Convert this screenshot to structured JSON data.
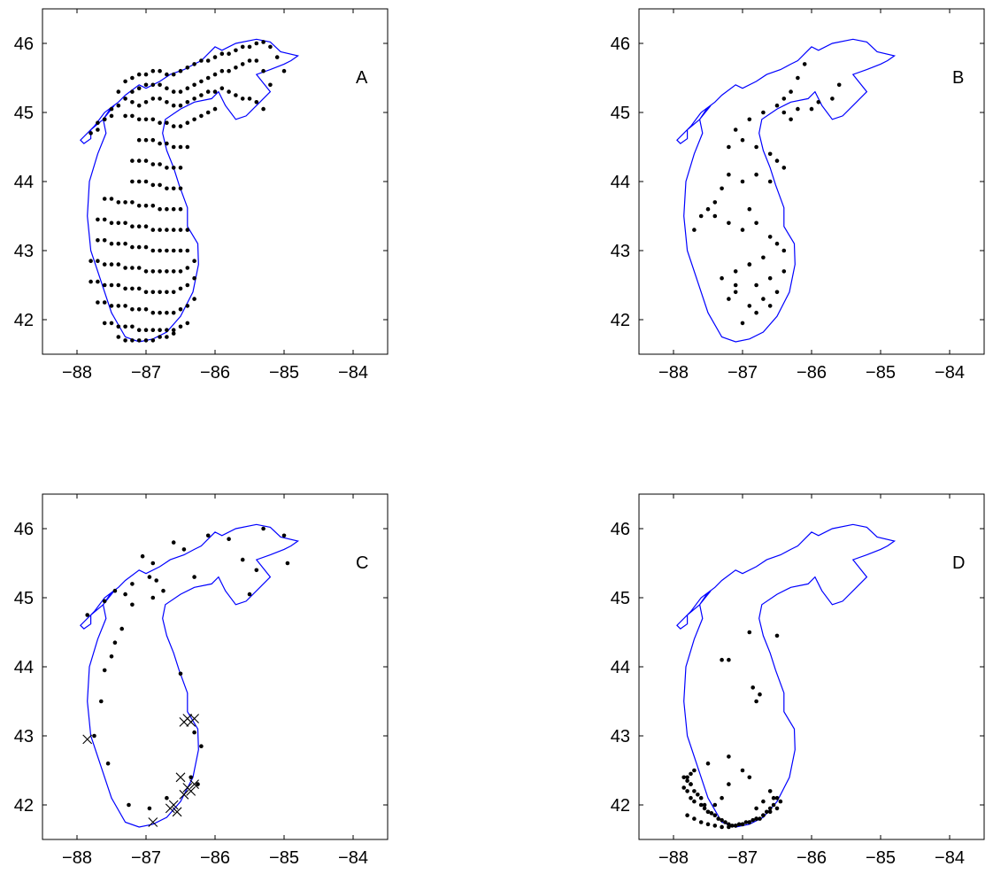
{
  "figure": {
    "coastline_color": "#0000ff",
    "marker_color": "#000000",
    "coastline_lon": [
      -87.9,
      -87.8,
      -87.8,
      -87.62,
      -87.52,
      -87.46,
      -87.62,
      -87.58,
      -87.7,
      -87.82,
      -87.85,
      -87.8,
      -87.65,
      -87.5,
      -87.3,
      -87.1,
      -86.9,
      -86.7,
      -86.5,
      -86.32,
      -86.24,
      -86.25,
      -86.4,
      -86.4,
      -86.52,
      -86.6,
      -86.7,
      -86.76,
      -86.72,
      -86.5,
      -86.3,
      -86.05,
      -85.95,
      -85.85,
      -85.7,
      -85.55,
      -85.35,
      -85.2,
      -85.4,
      -85.2,
      -85.0,
      -84.9,
      -84.8,
      -85.05,
      -85.2,
      -85.4,
      -85.7,
      -85.9,
      -86.0,
      -86.1,
      -86.2,
      -86.3,
      -86.45,
      -86.65,
      -86.8,
      -87.0,
      -87.1,
      -87.3,
      -87.4,
      -87.6,
      -87.75,
      -87.95,
      -87.9
    ],
    "coastline_lat": [
      44.55,
      44.62,
      44.75,
      44.9,
      45.05,
      45.1,
      44.9,
      44.7,
      44.4,
      44.0,
      43.5,
      43.0,
      42.55,
      42.1,
      41.75,
      41.68,
      41.72,
      41.82,
      42.05,
      42.4,
      42.8,
      43.1,
      43.35,
      43.62,
      43.95,
      44.2,
      44.45,
      44.7,
      44.9,
      45.05,
      45.15,
      45.2,
      45.3,
      45.1,
      44.9,
      44.95,
      45.15,
      45.3,
      45.55,
      45.62,
      45.7,
      45.75,
      45.82,
      45.88,
      46.02,
      46.06,
      46.0,
      45.9,
      45.95,
      45.85,
      45.75,
      45.7,
      45.62,
      45.55,
      45.45,
      45.35,
      45.4,
      45.25,
      45.15,
      45.0,
      44.8,
      44.6,
      44.55
    ]
  },
  "chart_data": [
    {
      "panel": "A",
      "type": "scatter",
      "marker": "dot",
      "xlim": [
        -88.5,
        -83.5
      ],
      "ylim": [
        41.5,
        46.5
      ],
      "xticks": [
        "−88",
        "−87",
        "−86",
        "−85",
        "−84"
      ],
      "xtick_values": [
        -88,
        -87,
        -86,
        -85,
        -84
      ],
      "yticks": [
        "46",
        "45",
        "44",
        "43",
        "42"
      ],
      "ytick_values": [
        46,
        45,
        44,
        43,
        42
      ],
      "label": "A",
      "grid": false,
      "x": [
        -87.8,
        -87.7,
        -87.6,
        -87.5,
        -87.4,
        -87.3,
        -87.2,
        -87.1,
        -87.0,
        -86.9,
        -86.8,
        -86.7,
        -86.6,
        -86.5,
        -86.4,
        -86.3,
        -86.2,
        -86.1,
        -86.0,
        -85.9,
        -85.8,
        -85.7,
        -85.6,
        -85.5,
        -85.4,
        -85.3,
        -85.2,
        -85.1,
        -85.0,
        -87.7,
        -87.6,
        -87.5,
        -87.4,
        -87.3,
        -87.2,
        -87.1,
        -87.0,
        -86.9,
        -86.8,
        -86.7,
        -86.6,
        -86.5,
        -86.4,
        -86.3,
        -86.2,
        -86.1,
        -86.0,
        -85.9,
        -85.8,
        -85.7,
        -85.6,
        -85.5,
        -85.4,
        -85.3,
        -85.2,
        -87.2,
        -87.1,
        -87.0,
        -86.9,
        -86.8,
        -86.7,
        -86.6,
        -86.5,
        -86.4,
        -86.3,
        -86.2,
        -86.1,
        -86.0,
        -85.9,
        -85.8,
        -85.7,
        -85.6,
        -85.5,
        -85.4,
        -85.3,
        -87.3,
        -87.2,
        -87.1,
        -87.0,
        -86.9,
        -86.8,
        -86.7,
        -86.6,
        -86.5,
        -86.4,
        -86.3,
        -86.2,
        -86.1,
        -86.0,
        -87.1,
        -87.0,
        -86.9,
        -86.8,
        -86.7,
        -86.6,
        -86.5,
        -86.4,
        -87.2,
        -87.1,
        -87.0,
        -86.9,
        -86.8,
        -86.7,
        -86.6,
        -86.5,
        -87.2,
        -87.1,
        -87.0,
        -86.9,
        -86.8,
        -86.7,
        -86.6,
        -86.5,
        -87.6,
        -87.5,
        -87.4,
        -87.3,
        -87.2,
        -87.1,
        -87.0,
        -86.9,
        -86.8,
        -86.7,
        -86.6,
        -86.5,
        -87.7,
        -87.6,
        -87.5,
        -87.4,
        -87.3,
        -87.2,
        -87.1,
        -87.0,
        -86.9,
        -86.8,
        -86.7,
        -86.6,
        -86.5,
        -86.4,
        -87.7,
        -87.6,
        -87.5,
        -87.4,
        -87.3,
        -87.2,
        -87.1,
        -87.0,
        -86.9,
        -86.8,
        -86.7,
        -86.6,
        -86.5,
        -86.4,
        -87.8,
        -87.7,
        -87.6,
        -87.5,
        -87.4,
        -87.3,
        -87.2,
        -87.1,
        -87.0,
        -86.9,
        -86.8,
        -86.7,
        -86.6,
        -86.5,
        -86.4,
        -86.3,
        -87.8,
        -87.7,
        -87.6,
        -87.5,
        -87.4,
        -87.3,
        -87.2,
        -87.1,
        -87.0,
        -86.9,
        -86.8,
        -86.7,
        -86.6,
        -86.5,
        -86.4,
        -86.3,
        -87.7,
        -87.6,
        -87.5,
        -87.4,
        -87.3,
        -87.2,
        -87.1,
        -87.0,
        -86.9,
        -86.8,
        -86.7,
        -86.6,
        -86.5,
        -86.4,
        -86.3,
        -87.6,
        -87.5,
        -87.4,
        -87.3,
        -87.2,
        -87.1,
        -87.0,
        -86.9,
        -86.8,
        -86.7,
        -86.6,
        -86.5,
        -86.4,
        -87.4,
        -87.3,
        -87.2,
        -87.1,
        -87.0,
        -86.9,
        -86.8,
        -86.7,
        -86.6
      ],
      "y": [
        44.7,
        44.75,
        44.9,
        45.05,
        45.3,
        45.45,
        45.5,
        45.55,
        45.55,
        45.6,
        45.6,
        45.55,
        45.55,
        45.6,
        45.65,
        45.7,
        45.75,
        45.75,
        45.8,
        45.85,
        45.85,
        45.9,
        45.95,
        45.95,
        46.0,
        46.02,
        45.95,
        45.8,
        45.6,
        44.85,
        44.9,
        44.95,
        45.1,
        45.2,
        45.3,
        45.35,
        45.4,
        45.4,
        45.4,
        45.35,
        45.3,
        45.3,
        45.35,
        45.4,
        45.45,
        45.5,
        45.55,
        45.6,
        45.6,
        45.65,
        45.7,
        45.75,
        45.75,
        45.6,
        45.4,
        45.15,
        45.1,
        45.15,
        45.2,
        45.2,
        45.15,
        45.1,
        45.1,
        45.15,
        45.2,
        45.25,
        45.3,
        45.3,
        45.35,
        45.3,
        45.25,
        45.2,
        45.2,
        45.15,
        45.05,
        44.95,
        44.95,
        44.9,
        44.9,
        44.9,
        44.85,
        44.85,
        44.8,
        44.8,
        44.85,
        44.9,
        44.95,
        45.0,
        45.05,
        44.6,
        44.6,
        44.6,
        44.55,
        44.55,
        44.5,
        44.5,
        44.5,
        44.3,
        44.3,
        44.3,
        44.25,
        44.25,
        44.2,
        44.2,
        44.2,
        44.0,
        44.0,
        44.0,
        43.95,
        43.95,
        43.9,
        43.9,
        43.9,
        43.75,
        43.75,
        43.7,
        43.7,
        43.7,
        43.65,
        43.65,
        43.65,
        43.6,
        43.6,
        43.6,
        43.6,
        43.45,
        43.45,
        43.4,
        43.4,
        43.4,
        43.35,
        43.35,
        43.35,
        43.3,
        43.3,
        43.3,
        43.3,
        43.3,
        43.3,
        43.15,
        43.15,
        43.1,
        43.1,
        43.1,
        43.05,
        43.05,
        43.05,
        43.0,
        43.0,
        43.0,
        43.0,
        43.0,
        43.0,
        42.85,
        42.85,
        42.8,
        42.8,
        42.8,
        42.75,
        42.75,
        42.75,
        42.7,
        42.7,
        42.7,
        42.7,
        42.7,
        42.7,
        42.75,
        42.85,
        42.55,
        42.55,
        42.5,
        42.5,
        42.5,
        42.45,
        42.45,
        42.45,
        42.4,
        42.4,
        42.4,
        42.4,
        42.4,
        42.45,
        42.5,
        42.6,
        42.25,
        42.25,
        42.2,
        42.2,
        42.2,
        42.15,
        42.15,
        42.15,
        42.1,
        42.1,
        42.1,
        42.1,
        42.15,
        42.2,
        42.3,
        41.95,
        41.95,
        41.9,
        41.9,
        41.9,
        41.85,
        41.85,
        41.85,
        41.85,
        41.85,
        41.85,
        41.9,
        41.95,
        41.75,
        41.7,
        41.7,
        41.7,
        41.7,
        41.7,
        41.75,
        41.75,
        41.8
      ]
    },
    {
      "panel": "B",
      "type": "scatter",
      "marker": "dot",
      "xlim": [
        -88.5,
        -83.5
      ],
      "ylim": [
        41.5,
        46.5
      ],
      "xticks": [
        "−88",
        "−87",
        "−86",
        "−85",
        "−84"
      ],
      "xtick_values": [
        -88,
        -87,
        -86,
        -85,
        -84
      ],
      "yticks": [
        "46",
        "45",
        "44",
        "43",
        "42"
      ],
      "ytick_values": [
        46,
        45,
        44,
        43,
        42
      ],
      "label": "B",
      "grid": false,
      "x": [
        -86.1,
        -86.2,
        -86.3,
        -86.4,
        -86.5,
        -86.4,
        -86.3,
        -85.6,
        -85.7,
        -85.9,
        -86.0,
        -86.2,
        -86.7,
        -86.9,
        -87.1,
        -87.2,
        -87.0,
        -86.8,
        -86.6,
        -86.5,
        -86.4,
        -86.6,
        -86.8,
        -87.0,
        -87.2,
        -87.3,
        -87.4,
        -87.5,
        -87.6,
        -87.7,
        -87.4,
        -87.2,
        -87.0,
        -86.9,
        -86.8,
        -86.6,
        -86.5,
        -86.4,
        -86.7,
        -86.9,
        -87.1,
        -87.3,
        -87.1,
        -86.8,
        -86.6,
        -86.4,
        -86.5,
        -86.7,
        -86.9,
        -87.1,
        -87.2,
        -86.8,
        -86.6,
        -87.0,
        -86.9
      ],
      "y": [
        45.7,
        45.5,
        45.3,
        45.2,
        45.1,
        45.0,
        44.9,
        45.4,
        45.2,
        45.15,
        45.05,
        45.05,
        45.0,
        44.9,
        44.75,
        44.5,
        44.6,
        44.5,
        44.4,
        44.3,
        44.2,
        44.0,
        44.1,
        44.0,
        44.1,
        43.9,
        43.7,
        43.6,
        43.5,
        43.3,
        43.5,
        43.4,
        43.3,
        43.6,
        43.4,
        43.2,
        43.1,
        43.0,
        42.9,
        42.8,
        42.7,
        42.6,
        42.5,
        42.5,
        42.6,
        42.7,
        42.4,
        42.3,
        42.2,
        42.4,
        42.3,
        42.1,
        42.2,
        41.95,
        42.8
      ]
    },
    {
      "panel": "C",
      "type": "scatter",
      "marker": "dot-and-x",
      "xlim": [
        -88.5,
        -83.5
      ],
      "ylim": [
        41.5,
        46.5
      ],
      "xticks": [
        "−88",
        "−87",
        "−86",
        "−85",
        "−84"
      ],
      "xtick_values": [
        -88,
        -87,
        -86,
        -85,
        -84
      ],
      "yticks": [
        "46",
        "45",
        "44",
        "43",
        "42"
      ],
      "ytick_values": [
        46,
        45,
        44,
        43,
        42
      ],
      "label": "C",
      "grid": false,
      "dot_x": [
        -87.85,
        -87.6,
        -87.45,
        -87.3,
        -87.2,
        -87.05,
        -86.95,
        -86.85,
        -86.75,
        -86.45,
        -86.1,
        -85.8,
        -85.6,
        -85.3,
        -85.0,
        -84.95,
        -85.4,
        -85.5,
        -86.3,
        -86.6,
        -86.9,
        -86.9,
        -87.2,
        -87.35,
        -87.45,
        -87.5,
        -87.6,
        -87.65,
        -87.75,
        -87.55,
        -87.25,
        -86.95,
        -86.7,
        -86.35,
        -86.2,
        -86.3,
        -86.5,
        -86.25
      ],
      "dot_y": [
        44.75,
        44.95,
        45.1,
        45.05,
        45.2,
        45.6,
        45.3,
        45.25,
        45.1,
        45.7,
        45.9,
        45.85,
        45.55,
        46.0,
        45.9,
        45.5,
        45.4,
        45.05,
        45.3,
        45.8,
        45.5,
        45.0,
        44.9,
        44.55,
        44.35,
        44.15,
        43.95,
        43.5,
        43.0,
        42.6,
        42.0,
        41.95,
        42.1,
        42.4,
        42.85,
        43.05,
        43.9,
        42.3
      ],
      "x_marker_x": [
        -87.85,
        -86.4,
        -86.35,
        -86.3,
        -86.45,
        -86.5,
        -86.3,
        -86.4,
        -86.35,
        -86.45,
        -86.6,
        -86.65,
        -86.55,
        -86.9
      ],
      "x_marker_y": [
        42.95,
        43.25,
        43.2,
        43.25,
        43.2,
        42.4,
        42.3,
        42.25,
        42.2,
        42.15,
        42.0,
        41.95,
        41.9,
        41.75
      ]
    },
    {
      "panel": "D",
      "type": "scatter",
      "marker": "dot",
      "xlim": [
        -88.5,
        -83.5
      ],
      "ylim": [
        41.5,
        46.5
      ],
      "xticks": [
        "−88",
        "−87",
        "−86",
        "−85",
        "−84"
      ],
      "xtick_values": [
        -88,
        -87,
        -86,
        -85,
        -84
      ],
      "yticks": [
        "46",
        "45",
        "44",
        "43",
        "42"
      ],
      "ytick_values": [
        46,
        45,
        44,
        43,
        42
      ],
      "label": "D",
      "grid": false,
      "x": [
        -86.9,
        -86.5,
        -87.3,
        -87.2,
        -86.85,
        -86.75,
        -86.8,
        -87.2,
        -87.0,
        -87.5,
        -87.7,
        -87.75,
        -87.8,
        -87.75,
        -87.85,
        -87.8,
        -87.75,
        -87.7,
        -87.6,
        -87.55,
        -87.5,
        -87.8,
        -87.7,
        -87.6,
        -87.5,
        -87.4,
        -87.3,
        -87.2,
        -87.1,
        -87.0,
        -86.9,
        -86.8,
        -86.7,
        -86.6,
        -86.5,
        -86.45,
        -86.5,
        -86.55,
        -86.6,
        -86.65,
        -86.7,
        -86.75,
        -86.8,
        -86.85,
        -86.9,
        -86.95,
        -87.0,
        -87.05,
        -87.1,
        -87.15,
        -87.2,
        -87.25,
        -87.3,
        -87.35,
        -87.4,
        -87.45,
        -87.5,
        -87.55,
        -87.6,
        -87.65,
        -87.7,
        -87.75,
        -87.8,
        -87.85,
        -87.4,
        -87.3,
        -87.2,
        -86.9,
        -86.6,
        -86.55,
        -86.7,
        -86.8
      ],
      "y": [
        44.5,
        44.45,
        44.1,
        44.1,
        43.7,
        43.6,
        43.5,
        42.7,
        42.5,
        42.6,
        42.5,
        42.45,
        42.4,
        42.3,
        42.25,
        42.2,
        42.1,
        42.05,
        42.0,
        41.95,
        41.9,
        41.85,
        41.8,
        41.75,
        41.72,
        41.7,
        41.68,
        41.68,
        41.7,
        41.72,
        41.75,
        41.8,
        41.85,
        41.9,
        41.95,
        42.05,
        42.1,
        42.0,
        41.95,
        41.9,
        41.85,
        41.8,
        41.8,
        41.78,
        41.75,
        41.75,
        41.72,
        41.72,
        41.7,
        41.7,
        41.72,
        41.75,
        41.78,
        41.8,
        41.85,
        41.88,
        41.9,
        42.0,
        42.1,
        42.15,
        42.2,
        42.3,
        42.35,
        42.4,
        42.0,
        42.1,
        42.3,
        42.4,
        42.2,
        42.1,
        42.05,
        41.95
      ]
    }
  ]
}
